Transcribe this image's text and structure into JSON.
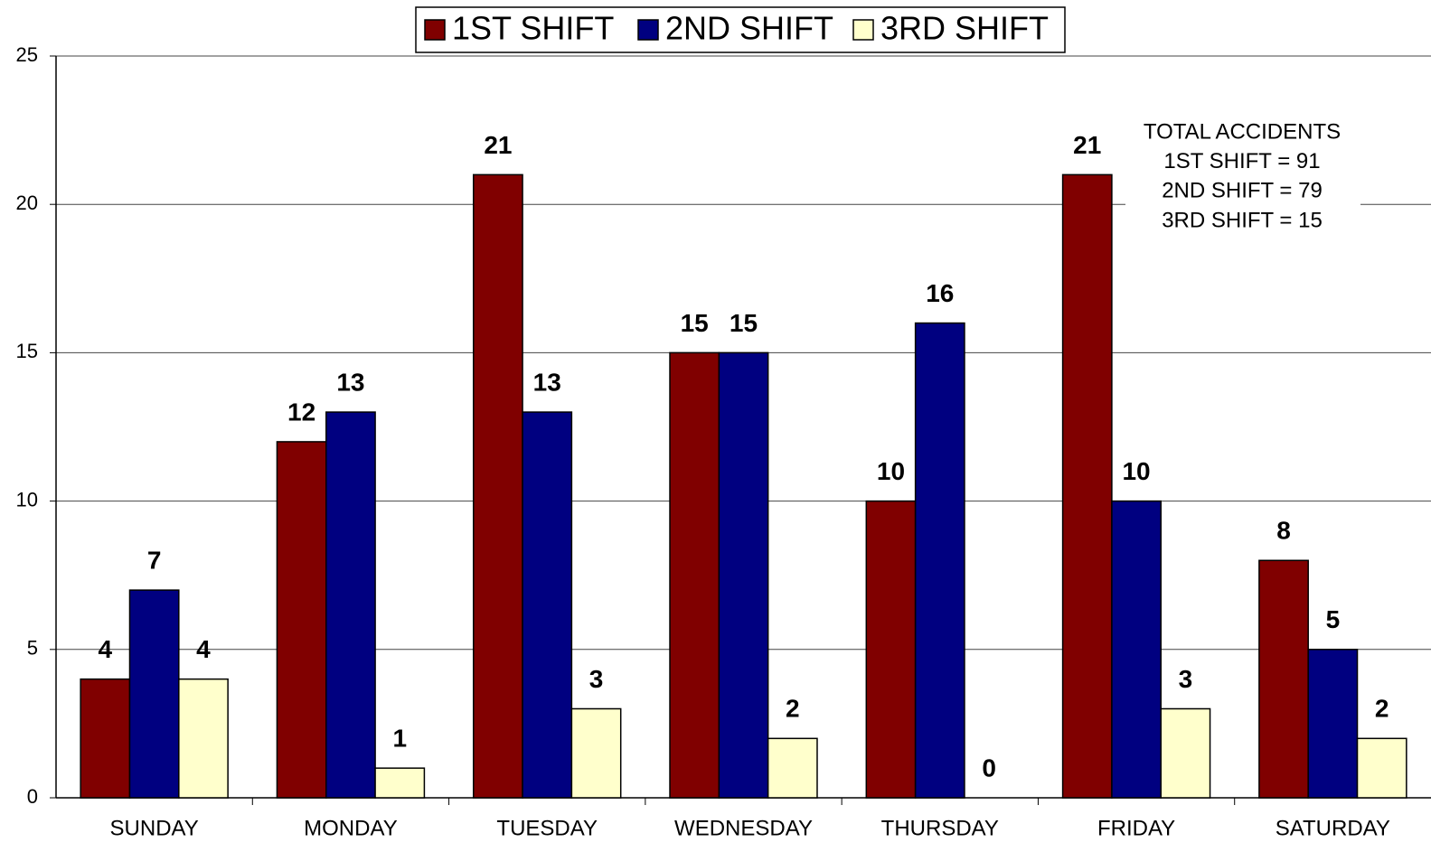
{
  "chart_data": {
    "type": "bar",
    "categories": [
      "SUNDAY",
      "MONDAY",
      "TUESDAY",
      "WEDNESDAY",
      "THURSDAY",
      "FRIDAY",
      "SATURDAY"
    ],
    "series": [
      {
        "name": "1ST SHIFT",
        "color": "#800000",
        "values": [
          4,
          12,
          21,
          15,
          10,
          21,
          8
        ]
      },
      {
        "name": "2ND SHIFT",
        "color": "#000080",
        "values": [
          7,
          13,
          13,
          15,
          16,
          10,
          5
        ]
      },
      {
        "name": "3RD SHIFT",
        "color": "#ffffcc",
        "values": [
          4,
          1,
          3,
          2,
          0,
          3,
          2
        ]
      }
    ],
    "annotations": [
      "TOTAL ACCIDENTS",
      "1ST SHIFT = 91",
      "2ND SHIFT = 79",
      "3RD SHIFT = 15"
    ],
    "ylim": [
      0,
      25
    ],
    "yticks": [
      0,
      5,
      10,
      15,
      20,
      25
    ],
    "grid": true,
    "legend": "top"
  }
}
